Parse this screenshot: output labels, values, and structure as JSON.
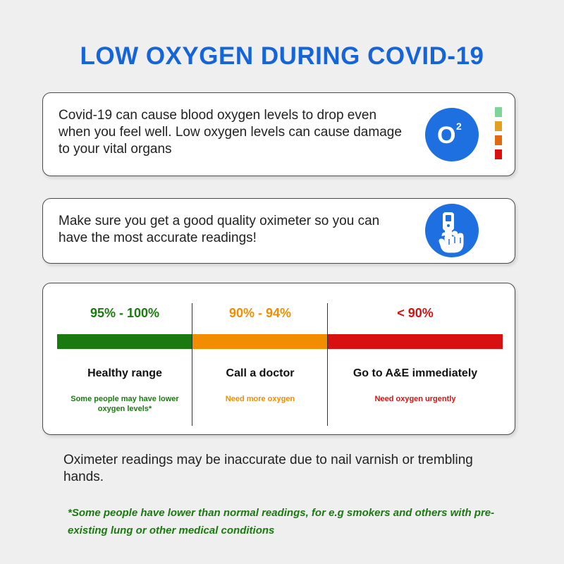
{
  "title": "LOW OXYGEN DURING COVID-19",
  "card1": {
    "text": "Covid-19 can cause blood oxygen levels to drop even when you feel well. Low oxygen levels can cause damage to your vital organs",
    "icon": "o2-icon",
    "icon_text": "O",
    "icon_sup": "2",
    "level_colors": [
      "#7fd49a",
      "#e0a020",
      "#e06a10",
      "#d81010"
    ]
  },
  "card2": {
    "text": "Make sure you get a good quality oximeter so you can have the most accurate readings!",
    "icon": "finger-oximeter-icon"
  },
  "ranges": [
    {
      "label": "95% - 100%",
      "heading": "Healthy range",
      "sub": "Some people may have lower oxygen levels*",
      "color": "#1a7a10"
    },
    {
      "label": "90% - 94%",
      "heading": "Call a doctor",
      "sub": "Need more oxygen",
      "color": "#f28c00"
    },
    {
      "label": "< 90%",
      "heading": "Go to A&E immediately",
      "sub": "Need oxygen urgently",
      "color": "#d81010"
    }
  ],
  "note": "Oximeter readings may be inaccurate due to nail varnish or trembling hands.",
  "footnote": "*Some people have lower than normal readings, for e.g smokers and others with pre-existing lung or other medical conditions"
}
